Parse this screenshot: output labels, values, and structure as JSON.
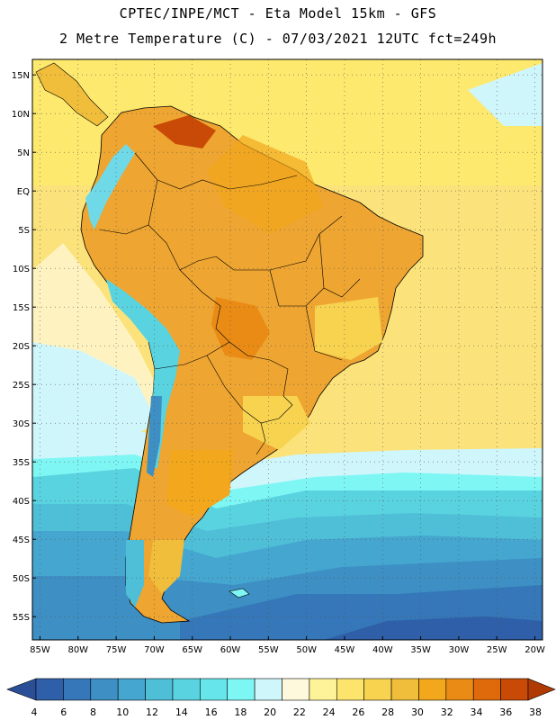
{
  "header": {
    "line1": "CPTEC/INPE/MCT -  Eta Model 15km - GFS",
    "line2": "2 Metre Temperature (C) - 07/03/2021 12UTC fct=249h"
  },
  "map": {
    "lon_range": [
      -86,
      -19
    ],
    "lat_range": [
      -58,
      17
    ],
    "lat_labels": [
      "15N",
      "10N",
      "5N",
      "EQ",
      "5S",
      "10S",
      "15S",
      "20S",
      "25S",
      "30S",
      "35S",
      "40S",
      "45S",
      "50S",
      "55S"
    ],
    "lat_values": [
      15,
      10,
      5,
      0,
      -5,
      -10,
      -15,
      -20,
      -25,
      -30,
      -35,
      -40,
      -45,
      -50,
      -55
    ],
    "lon_labels": [
      "85W",
      "80W",
      "75W",
      "70W",
      "65W",
      "60W",
      "55W",
      "50W",
      "45W",
      "40W",
      "35W",
      "30W",
      "25W",
      "20W"
    ],
    "lon_values": [
      -85,
      -80,
      -75,
      -70,
      -65,
      -60,
      -55,
      -50,
      -45,
      -40,
      -35,
      -30,
      -25,
      -20
    ]
  },
  "colorbar": {
    "labels": [
      "4",
      "6",
      "8",
      "10",
      "12",
      "14",
      "16",
      "18",
      "20",
      "22",
      "24",
      "26",
      "28",
      "30",
      "32",
      "34",
      "36",
      "38"
    ],
    "colors": [
      "#2e5fa8",
      "#3577b8",
      "#3d8fc4",
      "#45a6cf",
      "#4fbfd8",
      "#5ad3e0",
      "#66e6ea",
      "#7ef7f4",
      "#cff6fb",
      "#fef8dc",
      "#fff39a",
      "#fde46c",
      "#f7d350",
      "#f0be3a",
      "#f2a71c",
      "#e98b14",
      "#df6a0c",
      "#c84a06"
    ],
    "low_color": "#2a4f96",
    "high_color": "#b03a04"
  },
  "palette": {
    "ocean_warm": "#fbe27a",
    "ocean_tropic": "#fde96e",
    "land_hot": "#f0b33a",
    "land_mid": "#eea531",
    "andes": "#6fd9e8",
    "south_ocean_a": "#45a6cf",
    "south_ocean_b": "#3577b8",
    "south_ocean_c": "#2e5fa8"
  }
}
